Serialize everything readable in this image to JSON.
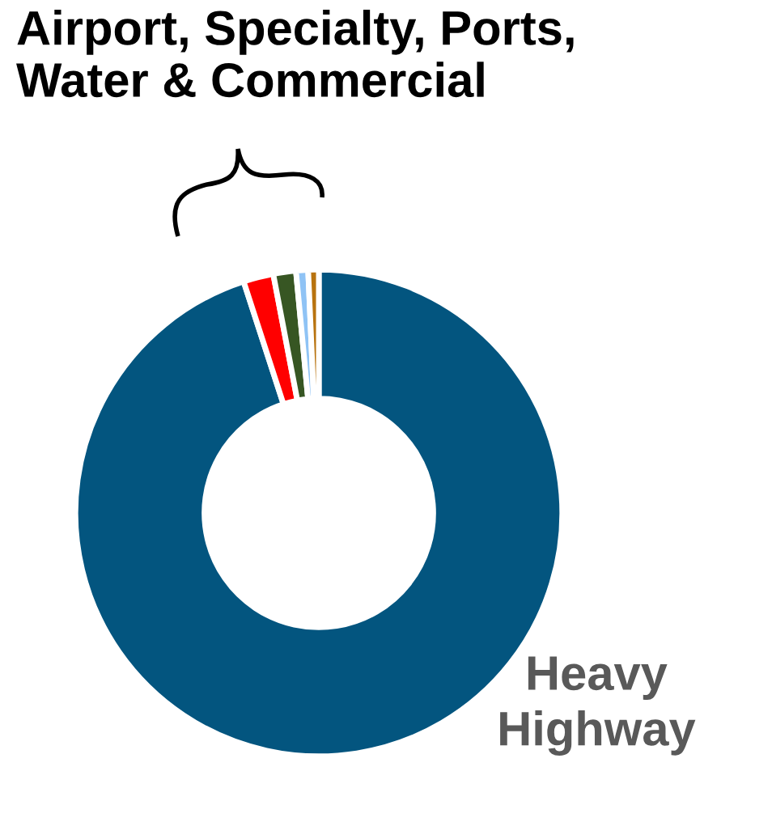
{
  "chart_data": {
    "type": "donut",
    "categories": [
      "Heavy Highway",
      null,
      null,
      null,
      null
    ],
    "values": [
      95.0,
      2.0,
      1.5,
      0.8,
      0.7
    ],
    "colors": [
      "#03557f",
      "#ff0000",
      "#375623",
      "#8fc3f5",
      "#b8730f"
    ],
    "annotations": [
      "Airport, Specialty, Ports,\nWater & Commercial"
    ]
  }
}
